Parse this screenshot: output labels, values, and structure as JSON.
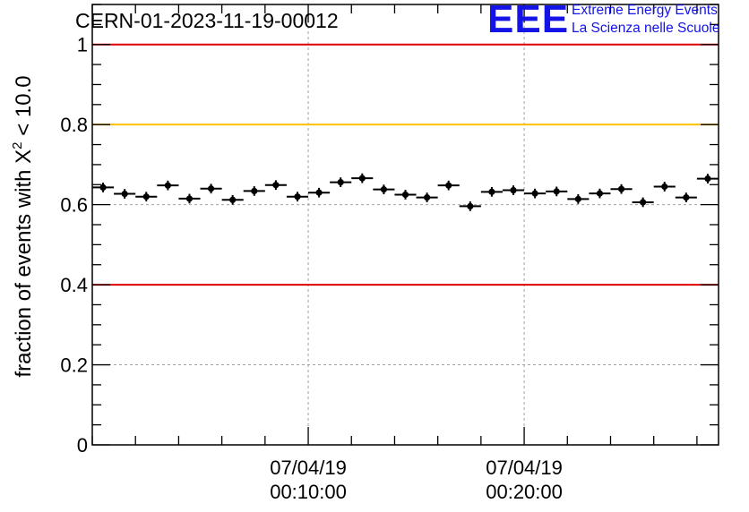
{
  "header": {
    "run_id": "CERN-01-2023-11-19-00012"
  },
  "logo": {
    "mark": "EEE",
    "line1": "Extreme Energy Events",
    "line2": "La Scienza nelle Scuole",
    "color": "#1414e6"
  },
  "chart_data": {
    "type": "scatter",
    "title": "CERN-01-2023-11-19-00012",
    "xlabel": "",
    "ylabel": "fraction of events with X² < 10.0",
    "ylabel_parts": {
      "before": "fraction of events with X",
      "sup": "2",
      "after": " < 10.0"
    },
    "ylim": [
      0,
      1.1
    ],
    "yticks": [
      {
        "value": 0,
        "label": "0"
      },
      {
        "value": 0.2,
        "label": "0.2"
      },
      {
        "value": 0.4,
        "label": "0.4"
      },
      {
        "value": 0.6,
        "label": "0.6"
      },
      {
        "value": 0.8,
        "label": "0.8"
      },
      {
        "value": 1,
        "label": "1"
      }
    ],
    "xlim_minutes": [
      0,
      29
    ],
    "xticks": [
      {
        "minute": 10,
        "date": "07/04/19",
        "time": "00:10:00"
      },
      {
        "minute": 20,
        "date": "07/04/19",
        "time": "00:20:00"
      }
    ],
    "grid": true,
    "reference_lines": [
      {
        "y": 1.0,
        "color": "#e00000"
      },
      {
        "y": 0.8,
        "color": "#ffc000"
      },
      {
        "y": 0.4,
        "color": "#e00000"
      }
    ],
    "series": [
      {
        "marker_color": "#000000",
        "x_minutes": [
          0.5,
          1.5,
          2.5,
          3.5,
          4.5,
          5.5,
          6.5,
          7.5,
          8.5,
          9.5,
          10.5,
          11.5,
          12.5,
          13.5,
          14.5,
          15.5,
          16.5,
          17.5,
          18.5,
          19.5,
          20.5,
          21.5,
          22.5,
          23.5,
          24.5,
          25.5,
          26.5,
          27.5,
          28.5
        ],
        "x_halfwidth_minutes": 0.5,
        "y": [
          0.643,
          0.627,
          0.62,
          0.648,
          0.615,
          0.64,
          0.612,
          0.634,
          0.649,
          0.62,
          0.63,
          0.656,
          0.666,
          0.638,
          0.625,
          0.618,
          0.648,
          0.596,
          0.632,
          0.636,
          0.628,
          0.633,
          0.614,
          0.628,
          0.639,
          0.606,
          0.645,
          0.618,
          0.665
        ],
        "y_error": 0.012
      }
    ]
  }
}
